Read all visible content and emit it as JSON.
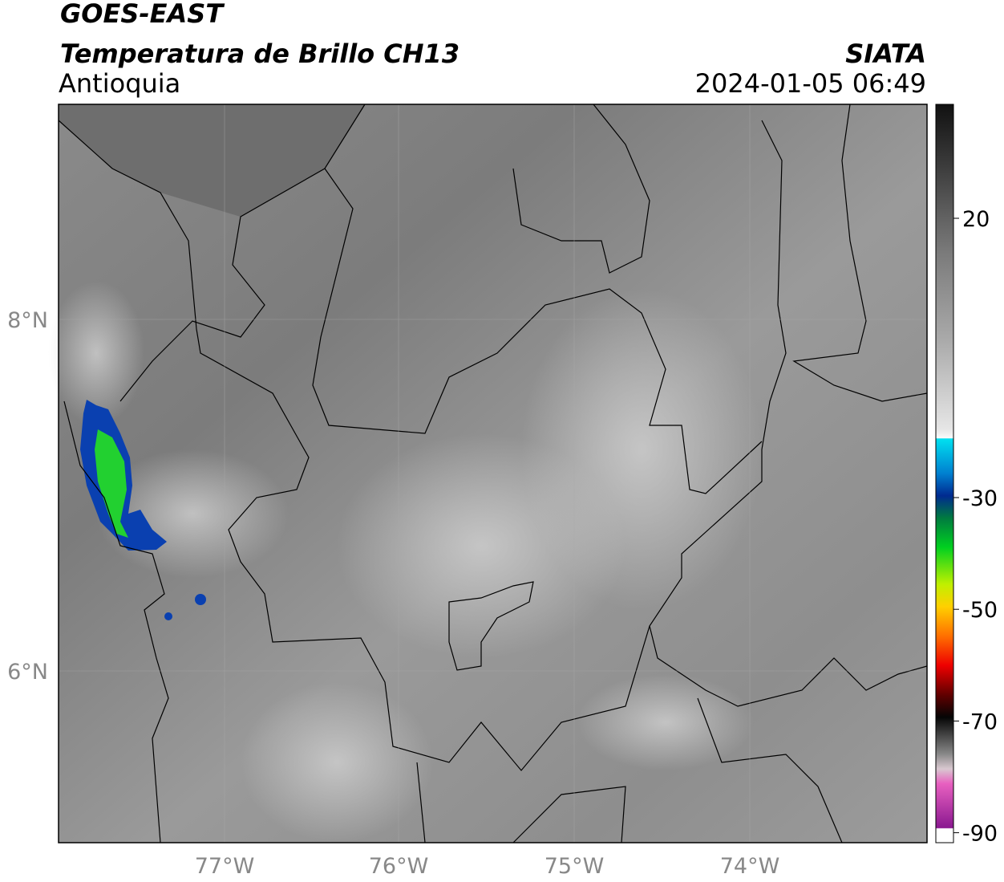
{
  "header": {
    "title": "GOES-EAST",
    "subtitle": "Temperatura de Brillo CH13",
    "region": "Antioquia",
    "org": "SIATA",
    "datetime": "2024-01-05 06:49"
  },
  "map": {
    "lon_labels": [
      "77°W",
      "76°W",
      "75°W",
      "74°W"
    ],
    "lat_labels": [
      "8°N",
      "6°N"
    ]
  },
  "colorbar": {
    "ticks": [
      20,
      -30,
      -50,
      -70,
      -90
    ]
  }
}
